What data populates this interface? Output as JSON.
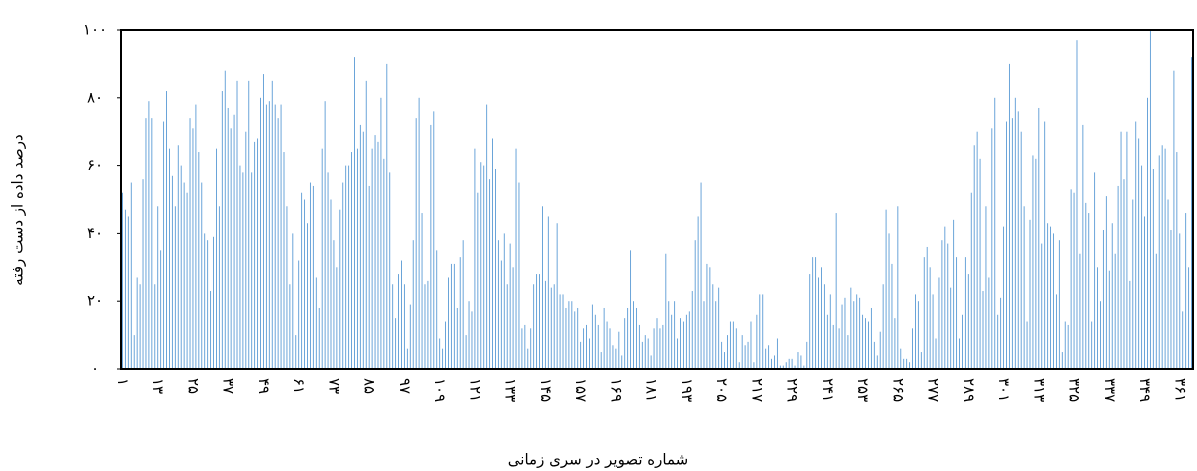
{
  "chart_data": {
    "type": "bar",
    "x_label": "شماره تصویر در سری زمانی",
    "y_label": "درصد داده از دست رفته",
    "color": "#5b9bd5",
    "ylim": [
      0,
      100
    ],
    "yticks": [
      {
        "value": 0,
        "label": "۰"
      },
      {
        "value": 20,
        "label": "۲۰"
      },
      {
        "value": 40,
        "label": "۴۰"
      },
      {
        "value": 60,
        "label": "۶۰"
      },
      {
        "value": 80,
        "label": "۸۰"
      },
      {
        "value": 100,
        "label": "۱۰۰"
      }
    ],
    "categories": [
      "۱",
      null,
      null,
      null,
      null,
      null,
      null,
      null,
      null,
      null,
      null,
      null,
      "۱۳",
      null,
      null,
      null,
      null,
      null,
      null,
      null,
      null,
      null,
      null,
      null,
      "۲۵",
      null,
      null,
      null,
      null,
      null,
      null,
      null,
      null,
      null,
      null,
      null,
      "۳۷",
      null,
      null,
      null,
      null,
      null,
      null,
      null,
      null,
      null,
      null,
      null,
      "۴۹",
      null,
      null,
      null,
      null,
      null,
      null,
      null,
      null,
      null,
      null,
      null,
      "۶۱",
      null,
      null,
      null,
      null,
      null,
      null,
      null,
      null,
      null,
      null,
      null,
      "۷۳",
      null,
      null,
      null,
      null,
      null,
      null,
      null,
      null,
      null,
      null,
      null,
      "۸۵",
      null,
      null,
      null,
      null,
      null,
      null,
      null,
      null,
      null,
      null,
      null,
      "۹۷",
      null,
      null,
      null,
      null,
      null,
      null,
      null,
      null,
      null,
      null,
      null,
      "۱۰۹",
      null,
      null,
      null,
      null,
      null,
      null,
      null,
      null,
      null,
      null,
      null,
      "۱۲۱",
      null,
      null,
      null,
      null,
      null,
      null,
      null,
      null,
      null,
      null,
      null,
      "۱۳۳",
      null,
      null,
      null,
      null,
      null,
      null,
      null,
      null,
      null,
      null,
      null,
      "۱۴۵",
      null,
      null,
      null,
      null,
      null,
      null,
      null,
      null,
      null,
      null,
      null,
      "۱۵۷",
      null,
      null,
      null,
      null,
      null,
      null,
      null,
      null,
      null,
      null,
      null,
      "۱۶۹",
      null,
      null,
      null,
      null,
      null,
      null,
      null,
      null,
      null,
      null,
      null,
      "۱۸۱",
      null,
      null,
      null,
      null,
      null,
      null,
      null,
      null,
      null,
      null,
      null,
      "۱۹۳",
      null,
      null,
      null,
      null,
      null,
      null,
      null,
      null,
      null,
      null,
      null,
      "۲۰۵",
      null,
      null,
      null,
      null,
      null,
      null,
      null,
      null,
      null,
      null,
      null,
      "۲۱۷",
      null,
      null,
      null,
      null,
      null,
      null,
      null,
      null,
      null,
      null,
      null,
      "۲۲۹",
      null,
      null,
      null,
      null,
      null,
      null,
      null,
      null,
      null,
      null,
      null,
      "۲۴۱",
      null,
      null,
      null,
      null,
      null,
      null,
      null,
      null,
      null,
      null,
      null,
      "۲۵۳",
      null,
      null,
      null,
      null,
      null,
      null,
      null,
      null,
      null,
      null,
      null,
      "۲۶۵",
      null,
      null,
      null,
      null,
      null,
      null,
      null,
      null,
      null,
      null,
      null,
      "۲۷۷",
      null,
      null,
      null,
      null,
      null,
      null,
      null,
      null,
      null,
      null,
      null,
      "۲۸۹",
      null,
      null,
      null,
      null,
      null,
      null,
      null,
      null,
      null,
      null,
      null,
      "۳۰۱",
      null,
      null,
      null,
      null,
      null,
      null,
      null,
      null,
      null,
      null,
      null,
      "۳۱۳",
      null,
      null,
      null,
      null,
      null,
      null,
      null,
      null,
      null,
      null,
      null,
      "۳۲۵",
      null,
      null,
      null,
      null,
      null,
      null,
      null,
      null,
      null,
      null,
      null,
      "۳۳۷",
      null,
      null,
      null,
      null,
      null,
      null,
      null,
      null,
      null,
      null,
      null,
      "۳۴۹",
      null,
      null,
      null,
      null,
      null,
      null,
      null,
      null,
      null,
      null,
      null,
      "۳۶۱",
      null,
      null,
      null,
      null
    ],
    "values": [
      52,
      47,
      45,
      55,
      10,
      27,
      25,
      56,
      74,
      79,
      74,
      25,
      48,
      35,
      73,
      82,
      65,
      57,
      48,
      66,
      60,
      55,
      52,
      74,
      71,
      78,
      64,
      55,
      40,
      38,
      23,
      39,
      65,
      48,
      82,
      88,
      77,
      71,
      75,
      85,
      60,
      58,
      70,
      85,
      58,
      67,
      68,
      80,
      87,
      78,
      79,
      85,
      78,
      74,
      78,
      64,
      48,
      25,
      40,
      10,
      32,
      52,
      50,
      43,
      55,
      54,
      27,
      18,
      65,
      79,
      58,
      50,
      38,
      30,
      47,
      55,
      60,
      60,
      64,
      92,
      65,
      72,
      70,
      85,
      54,
      65,
      69,
      67,
      80,
      62,
      90,
      58,
      25,
      15,
      28,
      32,
      25,
      6,
      19,
      38,
      74,
      80,
      46,
      25,
      26,
      72,
      76,
      35,
      9,
      6,
      14,
      27,
      31,
      31,
      18,
      33,
      38,
      10,
      20,
      17,
      65,
      52,
      61,
      60,
      78,
      56,
      68,
      59,
      38,
      32,
      40,
      25,
      37,
      30,
      65,
      55,
      12,
      13,
      6,
      12,
      25,
      28,
      28,
      48,
      26,
      45,
      24,
      25,
      43,
      22,
      22,
      18,
      20,
      20,
      17,
      18,
      8,
      12,
      13,
      9,
      19,
      16,
      13,
      5,
      18,
      14,
      12,
      7,
      6,
      11,
      4,
      15,
      18,
      35,
      20,
      18,
      13,
      8,
      10,
      9,
      4,
      12,
      15,
      12,
      13,
      34,
      20,
      16,
      20,
      9,
      15,
      14,
      16,
      17,
      23,
      38,
      45,
      55,
      20,
      31,
      30,
      25,
      20,
      24,
      8,
      5,
      10,
      14,
      14,
      12,
      2,
      10,
      7,
      8,
      14,
      2,
      16,
      22,
      22,
      6,
      7,
      3,
      4,
      9,
      1,
      1,
      2,
      3,
      3,
      1,
      5,
      4,
      1,
      8,
      28,
      33,
      33,
      27,
      30,
      25,
      16,
      22,
      13,
      46,
      12,
      19,
      21,
      10,
      24,
      20,
      22,
      21,
      16,
      15,
      14,
      18,
      8,
      4,
      11,
      25,
      47,
      40,
      31,
      15,
      48,
      6,
      3,
      3,
      2,
      12,
      22,
      20,
      5,
      33,
      36,
      30,
      22,
      9,
      27,
      38,
      42,
      37,
      24,
      44,
      33,
      9,
      16,
      33,
      28,
      52,
      66,
      70,
      62,
      23,
      48,
      27,
      71,
      80,
      16,
      21,
      42,
      73,
      90,
      74,
      80,
      76,
      70,
      48,
      14,
      44,
      63,
      62,
      77,
      37,
      73,
      43,
      42,
      40,
      22,
      38,
      5,
      14,
      13,
      53,
      52,
      97,
      34,
      72,
      49,
      46,
      14,
      58,
      30,
      20,
      41,
      51,
      29,
      43,
      34,
      54,
      70,
      56,
      70,
      26,
      50,
      73,
      68,
      60,
      45,
      80,
      100,
      59,
      34,
      63,
      66,
      65,
      50,
      41,
      88,
      64,
      40,
      17,
      46,
      30,
      92
    ]
  }
}
